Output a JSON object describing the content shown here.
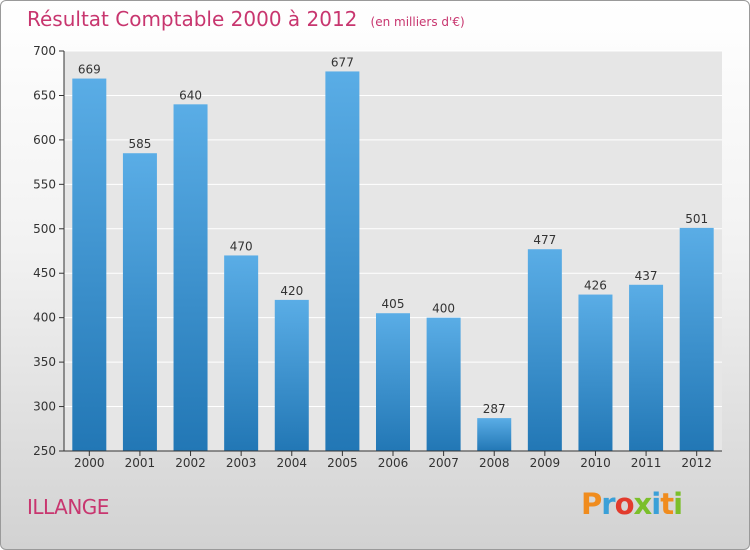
{
  "chart_data": {
    "type": "bar",
    "title": "Résultat Comptable 2000 à 2012",
    "unit_label": "(en milliers d'€)",
    "categories": [
      "2000",
      "2001",
      "2002",
      "2003",
      "2004",
      "2005",
      "2006",
      "2007",
      "2008",
      "2009",
      "2010",
      "2011",
      "2012"
    ],
    "values": [
      669,
      585,
      640,
      470,
      420,
      677,
      405,
      400,
      287,
      477,
      426,
      437,
      501
    ],
    "ylim": [
      250,
      700
    ],
    "yticks": [
      250,
      300,
      350,
      400,
      450,
      500,
      550,
      600,
      650,
      700
    ],
    "grid": true,
    "xlabel": "",
    "ylabel": ""
  },
  "place_name": "ILLANGE",
  "brand": {
    "name": "Proxiti",
    "letters": [
      "P",
      "r",
      "o",
      "x",
      "i",
      "t",
      "i"
    ],
    "letter_colors": [
      "#f08c1e",
      "#3aa0d8",
      "#e23b2d",
      "#7bbf2a",
      "#3aa0d8",
      "#f08c1e",
      "#7bbf2a"
    ]
  },
  "colors": {
    "title": "#c8366f",
    "bar_top": "#5aade6",
    "bar_bottom": "#2277b5",
    "grid": "#ffffff",
    "axis": "#333333"
  }
}
